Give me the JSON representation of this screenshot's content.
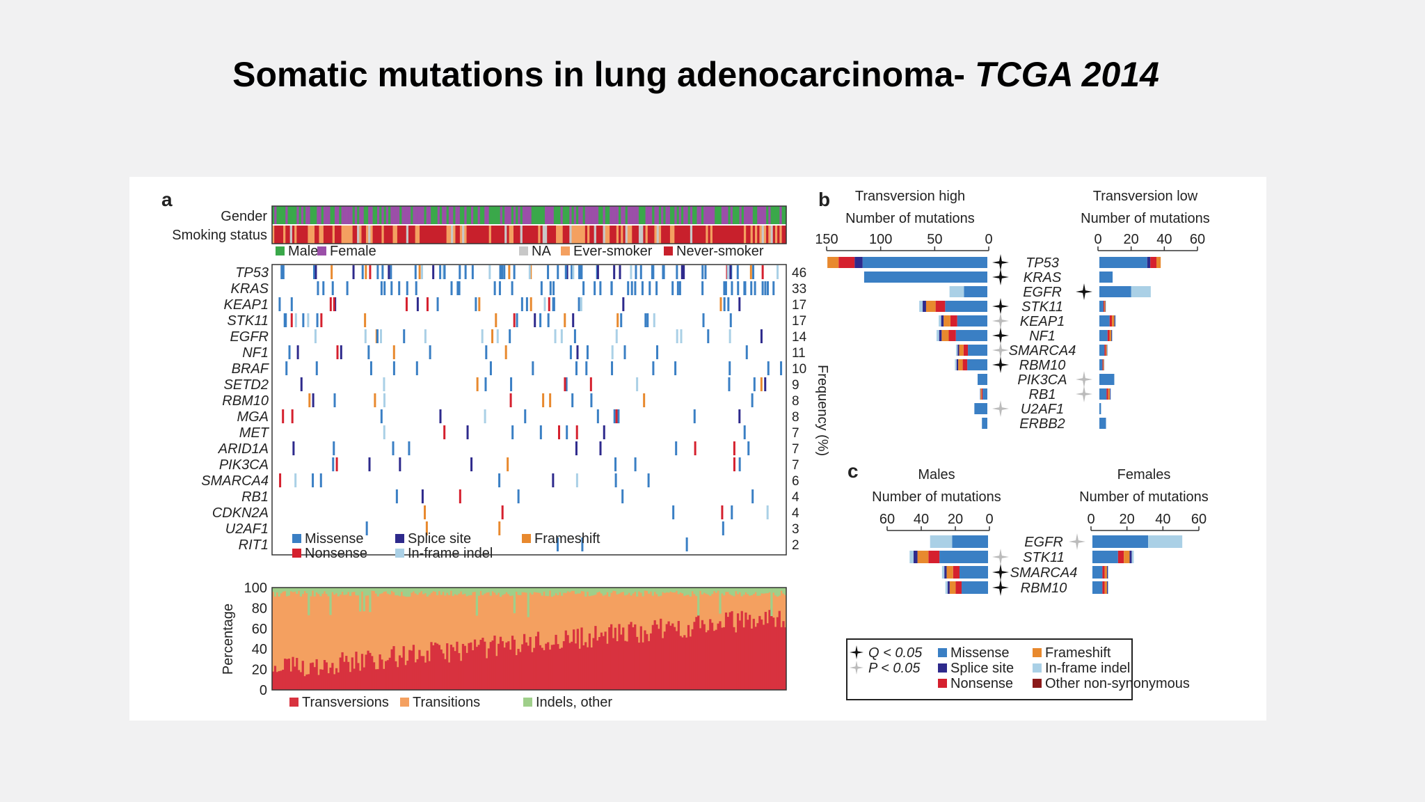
{
  "slide": {
    "title_main": "Somatic mutations in lung adenocarcinoma- ",
    "title_italic": "TCGA 2014"
  },
  "colors": {
    "missense": "#3a7fc4",
    "splice_site": "#2e2a8c",
    "frameshift": "#e8892e",
    "nonsense": "#d5202e",
    "inframe_indel": "#aad0e6",
    "other_nonsyn": "#8b1a1a",
    "male": "#3aa84a",
    "female": "#9b4fa8",
    "na": "#c8c8c8",
    "ever_smoker": "#f4a060",
    "never_smoker": "#c8202c",
    "transversions": "#d8323f",
    "transitions": "#f4a060",
    "indels_other": "#9fcf8a"
  },
  "chart_data": [
    {
      "panel": "a",
      "type": "heatmap",
      "panel_label": "a",
      "track_labels": [
        "Gender",
        "Smoking status"
      ],
      "track_legend": [
        {
          "label": "Male",
          "color_key": "male"
        },
        {
          "label": "Female",
          "color_key": "female"
        },
        {
          "label": "NA",
          "color_key": "na"
        },
        {
          "label": "Ever-smoker",
          "color_key": "ever_smoker"
        },
        {
          "label": "Never-smoker",
          "color_key": "never_smoker"
        }
      ],
      "genes": [
        "TP53",
        "KRAS",
        "KEAP1",
        "STK11",
        "EGFR",
        "NF1",
        "BRAF",
        "SETD2",
        "RBM10",
        "MGA",
        "MET",
        "ARID1A",
        "PIK3CA",
        "SMARCA4",
        "RB1",
        "CDKN2A",
        "U2AF1",
        "RIT1"
      ],
      "frequency_percent": [
        46,
        33,
        17,
        17,
        14,
        11,
        10,
        9,
        8,
        8,
        7,
        7,
        7,
        6,
        4,
        4,
        3,
        2
      ],
      "frequency_axis_label": "Frequency (%)",
      "mutation_legend": [
        {
          "label": "Missense",
          "color_key": "missense"
        },
        {
          "label": "Splice site",
          "color_key": "splice_site"
        },
        {
          "label": "Frameshift",
          "color_key": "frameshift"
        },
        {
          "label": "Nonsense",
          "color_key": "nonsense"
        },
        {
          "label": "In-frame indel",
          "color_key": "inframe_indel"
        }
      ]
    },
    {
      "panel": "a-bottom",
      "type": "area",
      "ylabel": "Percentage",
      "ylim": [
        0,
        100
      ],
      "yticks": [
        "0",
        "20",
        "40",
        "60",
        "80",
        "100"
      ],
      "legend": [
        {
          "label": "Transversions",
          "color_key": "transversions"
        },
        {
          "label": "Transitions",
          "color_key": "transitions"
        },
        {
          "label": "Indels, other",
          "color_key": "indels_other"
        }
      ],
      "transversion_trend": {
        "start_percent": 20,
        "end_percent": 72
      },
      "indel_percent_approx": 3
    },
    {
      "panel": "b",
      "type": "bar",
      "panel_label": "b",
      "genes": [
        "TP53",
        "KRAS",
        "EGFR",
        "STK11",
        "KEAP1",
        "NF1",
        "SMARCA4",
        "RBM10",
        "PIK3CA",
        "RB1",
        "U2AF1",
        "ERBB2"
      ],
      "left": {
        "title": "Transversion high",
        "xlabel": "Number of mutations",
        "xlim": [
          0,
          150
        ],
        "ticks": [
          "150",
          "100",
          "50",
          "0"
        ],
        "totals": [
          148,
          114,
          35,
          63,
          45,
          47,
          29,
          30,
          9,
          7,
          12,
          5
        ]
      },
      "right": {
        "title": "Transversion low",
        "xlabel": "Number of mutations",
        "xlim": [
          0,
          60
        ],
        "ticks": [
          "0",
          "20",
          "40",
          "60"
        ],
        "totals": [
          37,
          8,
          31,
          4,
          10,
          8,
          5,
          3,
          9,
          7,
          1,
          4
        ]
      },
      "significance": [
        {
          "gene": "TP53",
          "left": "Q",
          "right": null
        },
        {
          "gene": "KRAS",
          "left": "Q",
          "right": null
        },
        {
          "gene": "EGFR",
          "left": null,
          "right": "Q"
        },
        {
          "gene": "STK11",
          "left": "Q",
          "right": null
        },
        {
          "gene": "KEAP1",
          "left": "P",
          "right": null
        },
        {
          "gene": "NF1",
          "left": "Q",
          "right": null
        },
        {
          "gene": "SMARCA4",
          "left": "P",
          "right": null
        },
        {
          "gene": "RBM10",
          "left": "Q",
          "right": null
        },
        {
          "gene": "PIK3CA",
          "left": null,
          "right": "P"
        },
        {
          "gene": "RB1",
          "left": null,
          "right": "P"
        },
        {
          "gene": "U2AF1",
          "left": "P",
          "right": null
        },
        {
          "gene": "ERBB2",
          "left": null,
          "right": null
        }
      ]
    },
    {
      "panel": "c",
      "type": "bar",
      "panel_label": "c",
      "genes": [
        "EGFR",
        "STK11",
        "SMARCA4",
        "RBM10"
      ],
      "left": {
        "title": "Males",
        "xlabel": "Number of mutations",
        "xlim": [
          0,
          60
        ],
        "ticks": [
          "60",
          "40",
          "20",
          "0"
        ],
        "totals": [
          34,
          46,
          27,
          25
        ]
      },
      "right": {
        "title": "Females",
        "xlabel": "Number of mutations",
        "xlim": [
          0,
          60
        ],
        "ticks": [
          "0",
          "20",
          "40",
          "60"
        ],
        "totals": [
          50,
          23,
          9,
          9
        ]
      },
      "significance": [
        {
          "gene": "EGFR",
          "left": null,
          "right": "P"
        },
        {
          "gene": "STK11",
          "left": "P",
          "right": null
        },
        {
          "gene": "SMARCA4",
          "left": "Q",
          "right": null
        },
        {
          "gene": "RBM10",
          "left": "Q",
          "right": null
        }
      ],
      "legend": {
        "q_label": "Q < 0.05",
        "p_label": "P < 0.05",
        "items": [
          {
            "label": "Missense",
            "color_key": "missense"
          },
          {
            "label": "Frameshift",
            "color_key": "frameshift"
          },
          {
            "label": "Splice site",
            "color_key": "splice_site"
          },
          {
            "label": "In-frame indel",
            "color_key": "inframe_indel"
          },
          {
            "label": "Nonsense",
            "color_key": "nonsense"
          },
          {
            "label": "Other non-synonymous",
            "color_key": "other_nonsyn"
          }
        ]
      }
    }
  ]
}
